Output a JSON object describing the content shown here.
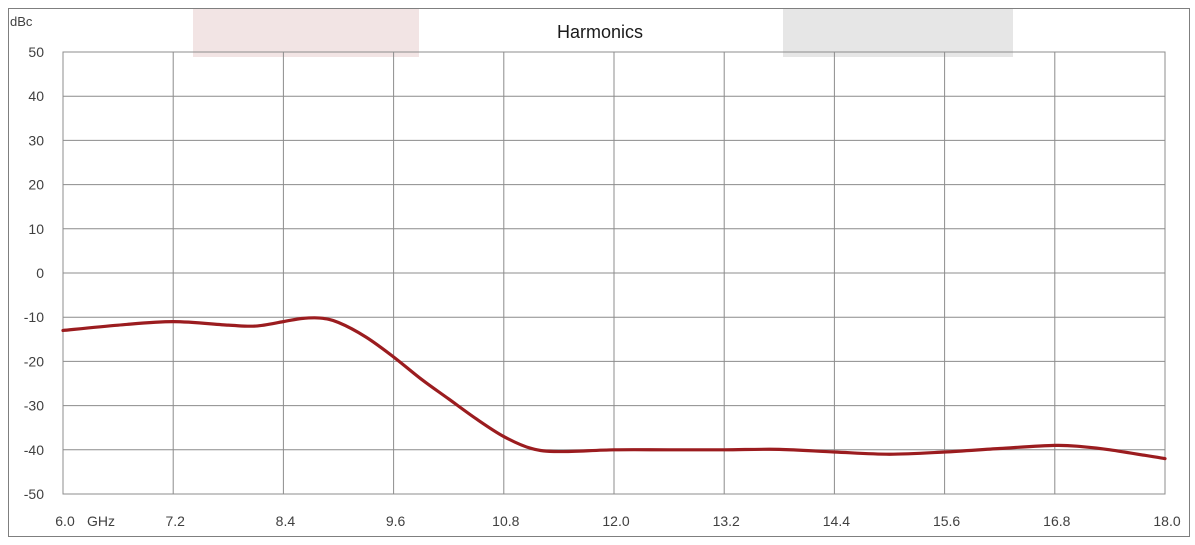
{
  "chart_data": {
    "type": "line",
    "title": "Harmonics",
    "ylabel": "dBc",
    "x_unit_label": "GHz",
    "xlim": [
      6.0,
      18.0
    ],
    "ylim": [
      -50,
      50
    ],
    "x_ticks": [
      "6.0",
      "7.2",
      "8.4",
      "9.6",
      "10.8",
      "12.0",
      "13.2",
      "14.4",
      "15.6",
      "16.8",
      "18.0"
    ],
    "y_ticks": [
      "50",
      "40",
      "30",
      "20",
      "10",
      "0",
      "-10",
      "-20",
      "-30",
      "-40",
      "-50"
    ],
    "grid": true,
    "series": [
      {
        "color": "#9b1c1f",
        "x": [
          6.0,
          6.6,
          7.2,
          7.8,
          8.1,
          8.4,
          8.6,
          8.8,
          9.0,
          9.3,
          9.6,
          9.9,
          10.2,
          10.5,
          10.8,
          11.1,
          11.4,
          12.0,
          12.6,
          13.2,
          13.8,
          14.4,
          15.0,
          15.6,
          16.2,
          16.8,
          17.1,
          17.4,
          18.0
        ],
        "y": [
          -13.0,
          -11.8,
          -11.0,
          -11.8,
          -12.0,
          -11.0,
          -10.3,
          -10.2,
          -11.2,
          -14.5,
          -19.0,
          -24.0,
          -28.5,
          -33.0,
          -37.0,
          -39.7,
          -40.4,
          -40.0,
          -40.0,
          -40.0,
          -39.9,
          -40.5,
          -41.0,
          -40.5,
          -39.7,
          -39.0,
          -39.3,
          -40.0,
          -42.0
        ]
      }
    ],
    "colors": {
      "line": "#9b1c1f",
      "grid": "#8c8c8c",
      "frame": "#7f7f7f"
    }
  }
}
